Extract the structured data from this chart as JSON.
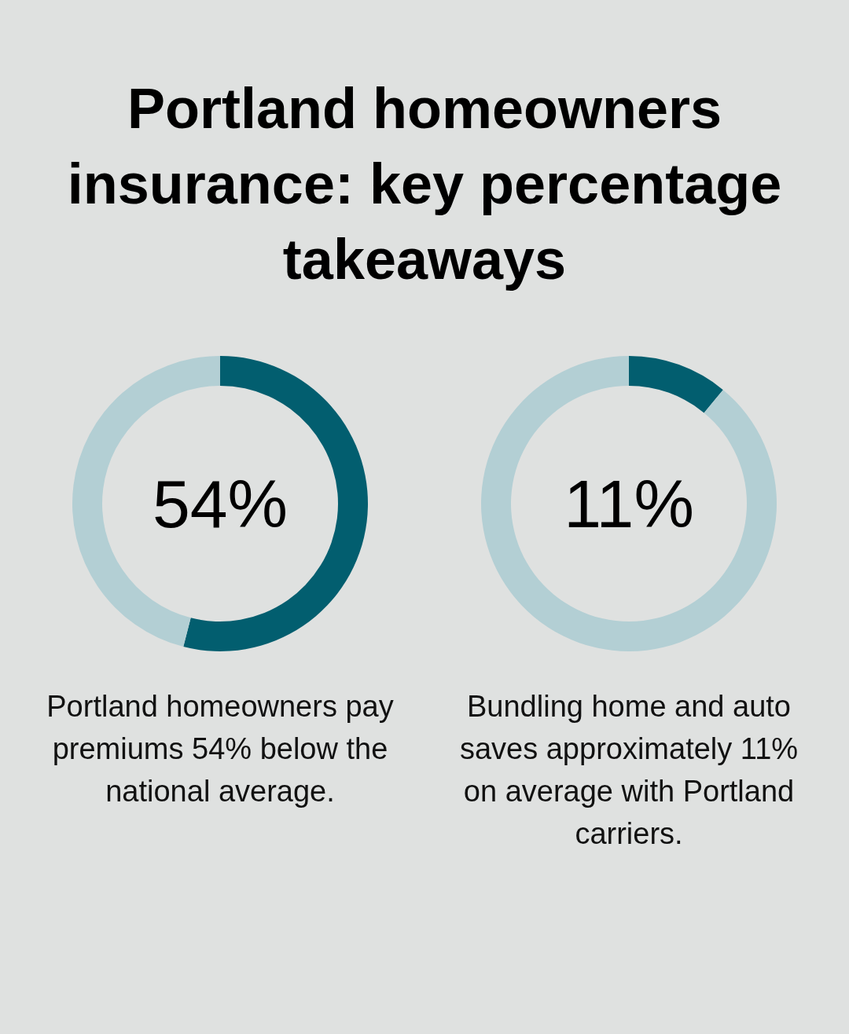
{
  "chart_data": [
    {
      "type": "donut",
      "title": "Portland homeowners insurance: key percentage takeaways",
      "categories": [
        null,
        null
      ],
      "values": [
        54,
        46
      ],
      "colors": [
        "#025e6f",
        "#b3cfd4"
      ],
      "annotations": [
        "54%",
        "Portland homeowners pay premiums 54% below the national average."
      ]
    },
    {
      "type": "donut",
      "categories": [
        null,
        null
      ],
      "values": [
        11,
        89
      ],
      "colors": [
        "#025e6f",
        "#b3cfd4"
      ],
      "annotations": [
        "11%",
        "Bundling home and auto saves approximately 11% on average with Portland carriers."
      ]
    }
  ]
}
